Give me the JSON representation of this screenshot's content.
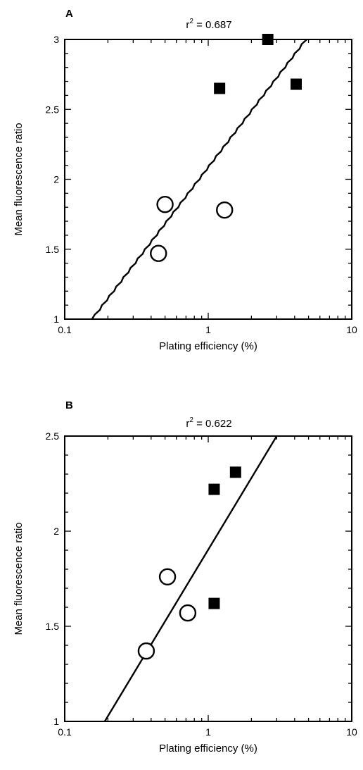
{
  "chart_data": [
    {
      "type": "scatter",
      "panel_label": "A",
      "annotation": "r² = 0.687",
      "rsq_prefix": "r",
      "rsq_exp": "2",
      "rsq_value": " = 0.687",
      "xlabel": "Plating efficiency (%)",
      "ylabel": "Mean fluorescence ratio",
      "x_scale": "log",
      "xlim": [
        0.1,
        10
      ],
      "ylim": [
        1,
        3
      ],
      "x_ticks": [
        0.1,
        1,
        10
      ],
      "x_tick_labels": [
        "0.1",
        "1",
        "10"
      ],
      "y_ticks": [
        1,
        1.5,
        2,
        2.5,
        3
      ],
      "y_tick_labels": [
        "1",
        "1.5",
        "2",
        "2.5",
        "3"
      ],
      "grid": false,
      "series": [
        {
          "marker": "open-circle",
          "points": [
            [
              0.5,
              1.82
            ],
            [
              1.3,
              1.78
            ],
            [
              0.45,
              1.47
            ]
          ]
        },
        {
          "marker": "filled-square",
          "points": [
            [
              2.6,
              3.0
            ],
            [
              1.2,
              2.65
            ],
            [
              4.1,
              2.68
            ]
          ]
        }
      ],
      "fit_line": [
        [
          0.155,
          1.0
        ],
        [
          4.8,
          3.0
        ]
      ],
      "fit_style": "jagged"
    },
    {
      "type": "scatter",
      "panel_label": "B",
      "annotation": "r² = 0.622",
      "rsq_prefix": "r",
      "rsq_exp": "2",
      "rsq_value": " = 0.622",
      "xlabel": "Plating efficiency (%)",
      "ylabel": "Mean fluorescence ratio",
      "x_scale": "log",
      "xlim": [
        0.1,
        10
      ],
      "ylim": [
        1,
        2.5
      ],
      "x_ticks": [
        0.1,
        1,
        10
      ],
      "x_tick_labels": [
        "0.1",
        "1",
        "10"
      ],
      "y_ticks": [
        1,
        1.5,
        2,
        2.5
      ],
      "y_tick_labels": [
        "1",
        "1.5",
        "2",
        "2.5"
      ],
      "grid": false,
      "series": [
        {
          "marker": "open-circle",
          "points": [
            [
              0.52,
              1.76
            ],
            [
              0.72,
              1.57
            ],
            [
              0.37,
              1.37
            ]
          ]
        },
        {
          "marker": "filled-square",
          "points": [
            [
              1.1,
              2.22
            ],
            [
              1.55,
              2.31
            ],
            [
              1.1,
              1.62
            ]
          ]
        }
      ],
      "fit_line": [
        [
          0.19,
          1.0
        ],
        [
          3.0,
          2.5
        ]
      ],
      "fit_style": "straight"
    }
  ]
}
